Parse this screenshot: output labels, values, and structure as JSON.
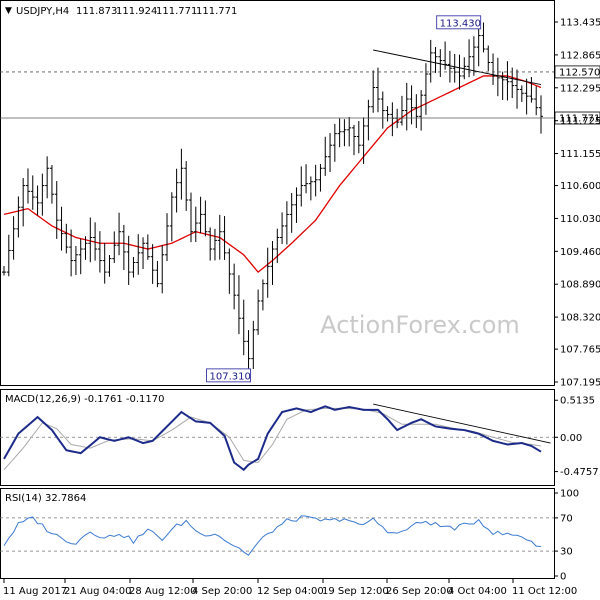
{
  "chart_data": [
    {
      "type": "candlestick",
      "header": {
        "symbol": "USDJPY,H4",
        "open": "111.873",
        "high": "111.924",
        "low": "111.771",
        "close": "111.771"
      },
      "watermark": "ActionForex.com",
      "ylim": [
        107.195,
        113.73
      ],
      "y_ticks": [
        "113.435",
        "112.865",
        "112.295",
        "111.725",
        "111.155",
        "110.600",
        "110.030",
        "109.460",
        "108.890",
        "108.320",
        "107.765",
        "107.195"
      ],
      "x_ticks": [
        "11 Aug 2017",
        "21 Aug 04:00",
        "28 Aug 12:00",
        "4 Sep 20:00",
        "12 Sep 04:00",
        "19 Sep 12:00",
        "26 Sep 20:00",
        "4 Oct 04:00",
        "11 Oct 12:00"
      ],
      "price_labels": [
        {
          "value": 112.57,
          "text": "112.570",
          "style": "dashed"
        },
        {
          "value": 111.771,
          "text": "111.771",
          "style": "solid"
        }
      ],
      "annotations": [
        {
          "text": "113.430",
          "value": 113.43,
          "bar": 99
        },
        {
          "text": "107.310",
          "value": 107.31,
          "bar": 51
        }
      ],
      "price_anchors": [
        [
          0,
          109.1
        ],
        [
          4,
          110.6
        ],
        [
          7,
          110.3
        ],
        [
          9,
          110.9
        ],
        [
          11,
          110.0
        ],
        [
          14,
          109.3
        ],
        [
          18,
          109.7
        ],
        [
          21,
          109.1
        ],
        [
          24,
          109.8
        ],
        [
          26,
          109.1
        ],
        [
          29,
          109.6
        ],
        [
          32,
          108.9
        ],
        [
          35,
          110.4
        ],
        [
          37,
          110.9
        ],
        [
          39,
          109.8
        ],
        [
          41,
          110.1
        ],
        [
          43,
          109.5
        ],
        [
          45,
          109.8
        ],
        [
          48,
          108.7
        ],
        [
          50,
          107.9
        ],
        [
          51,
          107.6
        ],
        [
          53,
          108.6
        ],
        [
          56,
          109.5
        ],
        [
          59,
          110.1
        ],
        [
          62,
          110.6
        ],
        [
          65,
          110.7
        ],
        [
          67,
          111.1
        ],
        [
          69,
          111.5
        ],
        [
          72,
          111.6
        ],
        [
          74,
          111.3
        ],
        [
          77,
          112.3
        ],
        [
          79,
          111.9
        ],
        [
          82,
          111.7
        ],
        [
          84,
          112.1
        ],
        [
          86,
          111.8
        ],
        [
          89,
          112.9
        ],
        [
          92,
          112.7
        ],
        [
          95,
          112.5
        ],
        [
          98,
          113.0
        ],
        [
          99,
          113.2
        ],
        [
          102,
          112.5
        ],
        [
          105,
          112.4
        ],
        [
          108,
          112.2
        ],
        [
          110,
          112.1
        ],
        [
          112,
          111.8
        ]
      ],
      "ma_anchors": [
        [
          0,
          110.1
        ],
        [
          5,
          110.2
        ],
        [
          10,
          109.9
        ],
        [
          15,
          109.7
        ],
        [
          20,
          109.6
        ],
        [
          25,
          109.6
        ],
        [
          30,
          109.5
        ],
        [
          35,
          109.6
        ],
        [
          40,
          109.8
        ],
        [
          45,
          109.7
        ],
        [
          50,
          109.4
        ],
        [
          53,
          109.1
        ],
        [
          56,
          109.3
        ],
        [
          60,
          109.6
        ],
        [
          65,
          110.0
        ],
        [
          70,
          110.6
        ],
        [
          75,
          111.1
        ],
        [
          80,
          111.6
        ],
        [
          85,
          111.9
        ],
        [
          90,
          112.1
        ],
        [
          95,
          112.3
        ],
        [
          100,
          112.5
        ],
        [
          105,
          112.5
        ],
        [
          109,
          112.4
        ],
        [
          112,
          112.3
        ]
      ],
      "trendline": [
        [
          77,
          112.95
        ],
        [
          112,
          112.35
        ]
      ]
    },
    {
      "type": "line",
      "label": "MACD(12,26,9) -0.1761 -0.1170",
      "ylim": [
        -0.62,
        0.6
      ],
      "y_ticks": [
        "0.5135",
        "0.00",
        "-0.4757"
      ],
      "macd_anchors": [
        [
          0,
          -0.3
        ],
        [
          3,
          0.05
        ],
        [
          7,
          0.28
        ],
        [
          10,
          0.1
        ],
        [
          13,
          -0.18
        ],
        [
          16,
          -0.22
        ],
        [
          20,
          0.0
        ],
        [
          23,
          -0.05
        ],
        [
          26,
          0.0
        ],
        [
          29,
          -0.08
        ],
        [
          31,
          -0.05
        ],
        [
          34,
          0.15
        ],
        [
          37,
          0.35
        ],
        [
          40,
          0.22
        ],
        [
          43,
          0.2
        ],
        [
          46,
          0.02
        ],
        [
          48,
          -0.35
        ],
        [
          50,
          -0.45
        ],
        [
          51,
          -0.38
        ],
        [
          53,
          -0.3
        ],
        [
          55,
          0.05
        ],
        [
          58,
          0.35
        ],
        [
          61,
          0.4
        ],
        [
          64,
          0.35
        ],
        [
          67,
          0.43
        ],
        [
          69,
          0.38
        ],
        [
          72,
          0.42
        ],
        [
          75,
          0.38
        ],
        [
          78,
          0.38
        ],
        [
          80,
          0.25
        ],
        [
          82,
          0.1
        ],
        [
          85,
          0.2
        ],
        [
          87,
          0.25
        ],
        [
          90,
          0.15
        ],
        [
          93,
          0.12
        ],
        [
          96,
          0.1
        ],
        [
          99,
          0.05
        ],
        [
          102,
          -0.05
        ],
        [
          105,
          -0.1
        ],
        [
          108,
          -0.08
        ],
        [
          110,
          -0.12
        ],
        [
          112,
          -0.2
        ]
      ],
      "signal_anchors": [
        [
          0,
          -0.45
        ],
        [
          4,
          -0.15
        ],
        [
          8,
          0.2
        ],
        [
          11,
          0.12
        ],
        [
          14,
          -0.1
        ],
        [
          18,
          -0.15
        ],
        [
          22,
          -0.04
        ],
        [
          27,
          -0.02
        ],
        [
          31,
          -0.05
        ],
        [
          35,
          0.1
        ],
        [
          39,
          0.28
        ],
        [
          43,
          0.2
        ],
        [
          47,
          0.0
        ],
        [
          50,
          -0.32
        ],
        [
          53,
          -0.35
        ],
        [
          56,
          -0.1
        ],
        [
          59,
          0.25
        ],
        [
          63,
          0.38
        ],
        [
          67,
          0.4
        ],
        [
          71,
          0.4
        ],
        [
          75,
          0.39
        ],
        [
          79,
          0.33
        ],
        [
          83,
          0.18
        ],
        [
          86,
          0.18
        ],
        [
          90,
          0.18
        ],
        [
          94,
          0.12
        ],
        [
          98,
          0.08
        ],
        [
          102,
          0.0
        ],
        [
          106,
          -0.07
        ],
        [
          110,
          -0.1
        ],
        [
          112,
          -0.12
        ]
      ],
      "trendline": [
        [
          77,
          0.46
        ],
        [
          114,
          -0.08
        ]
      ]
    },
    {
      "type": "line",
      "label": "RSI(14) 32.7864",
      "ylim": [
        0,
        100
      ],
      "y_ticks": [
        "100",
        "70",
        "30",
        "0"
      ],
      "levels": [
        70,
        30
      ],
      "rsi_anchors": [
        [
          0,
          38
        ],
        [
          3,
          62
        ],
        [
          6,
          70
        ],
        [
          9,
          56
        ],
        [
          12,
          45
        ],
        [
          15,
          40
        ],
        [
          18,
          55
        ],
        [
          21,
          45
        ],
        [
          24,
          52
        ],
        [
          27,
          42
        ],
        [
          30,
          55
        ],
        [
          33,
          45
        ],
        [
          36,
          60
        ],
        [
          38,
          66
        ],
        [
          41,
          50
        ],
        [
          44,
          52
        ],
        [
          47,
          40
        ],
        [
          50,
          30
        ],
        [
          51,
          25
        ],
        [
          53,
          40
        ],
        [
          56,
          55
        ],
        [
          59,
          66
        ],
        [
          62,
          70
        ],
        [
          65,
          68
        ],
        [
          68,
          66
        ],
        [
          71,
          70
        ],
        [
          74,
          60
        ],
        [
          77,
          68
        ],
        [
          80,
          55
        ],
        [
          82,
          50
        ],
        [
          85,
          60
        ],
        [
          88,
          66
        ],
        [
          91,
          60
        ],
        [
          94,
          58
        ],
        [
          97,
          62
        ],
        [
          99,
          68
        ],
        [
          102,
          52
        ],
        [
          105,
          50
        ],
        [
          108,
          48
        ],
        [
          110,
          42
        ],
        [
          112,
          33
        ]
      ]
    }
  ]
}
